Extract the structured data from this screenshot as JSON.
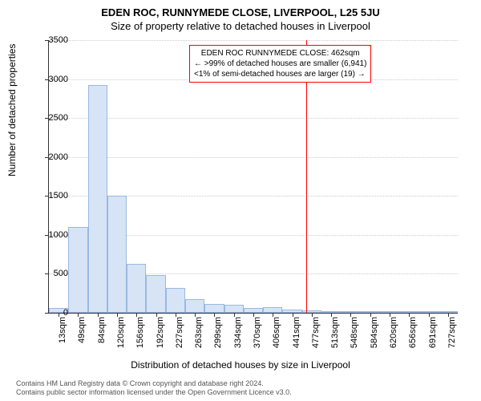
{
  "title": "EDEN ROC, RUNNYMEDE CLOSE, LIVERPOOL, L25 5JU",
  "subtitle": "Size of property relative to detached houses in Liverpool",
  "y_axis_label": "Number of detached properties",
  "x_axis_label": "Distribution of detached houses by size in Liverpool",
  "chart": {
    "type": "histogram",
    "background_color": "#ffffff",
    "bar_fill": "#d6e4f5",
    "bar_border": "#9ab8e0",
    "grid_color": "#cccccc",
    "axis_color": "#333333",
    "ylim": [
      0,
      3500
    ],
    "ytick_step": 500,
    "y_ticks": [
      0,
      500,
      1000,
      1500,
      2000,
      2500,
      3000,
      3500
    ],
    "x_labels": [
      "13sqm",
      "49sqm",
      "84sqm",
      "120sqm",
      "156sqm",
      "192sqm",
      "227sqm",
      "263sqm",
      "299sqm",
      "334sqm",
      "370sqm",
      "406sqm",
      "441sqm",
      "477sqm",
      "513sqm",
      "548sqm",
      "584sqm",
      "620sqm",
      "656sqm",
      "691sqm",
      "727sqm"
    ],
    "values": [
      60,
      1100,
      2920,
      1500,
      630,
      480,
      320,
      180,
      110,
      100,
      60,
      70,
      40,
      30,
      15,
      10,
      10,
      5,
      10,
      5,
      5
    ],
    "annotation_line_color": "#ff0000",
    "annotation_x_index": 13,
    "annotation_lines": [
      "EDEN ROC RUNNYMEDE CLOSE: 462sqm",
      "← >99% of detached houses are smaller (6,941)",
      "<1% of semi-detached houses are larger (19) →"
    ]
  },
  "footer_line1": "Contains HM Land Registry data © Crown copyright and database right 2024.",
  "footer_line2": "Contains public sector information licensed under the Open Government Licence v3.0.",
  "fonts": {
    "title_size": 13,
    "subtitle_size": 13,
    "axis_label_size": 12,
    "tick_label_size": 11,
    "annotation_size": 10,
    "footer_size": 9
  }
}
